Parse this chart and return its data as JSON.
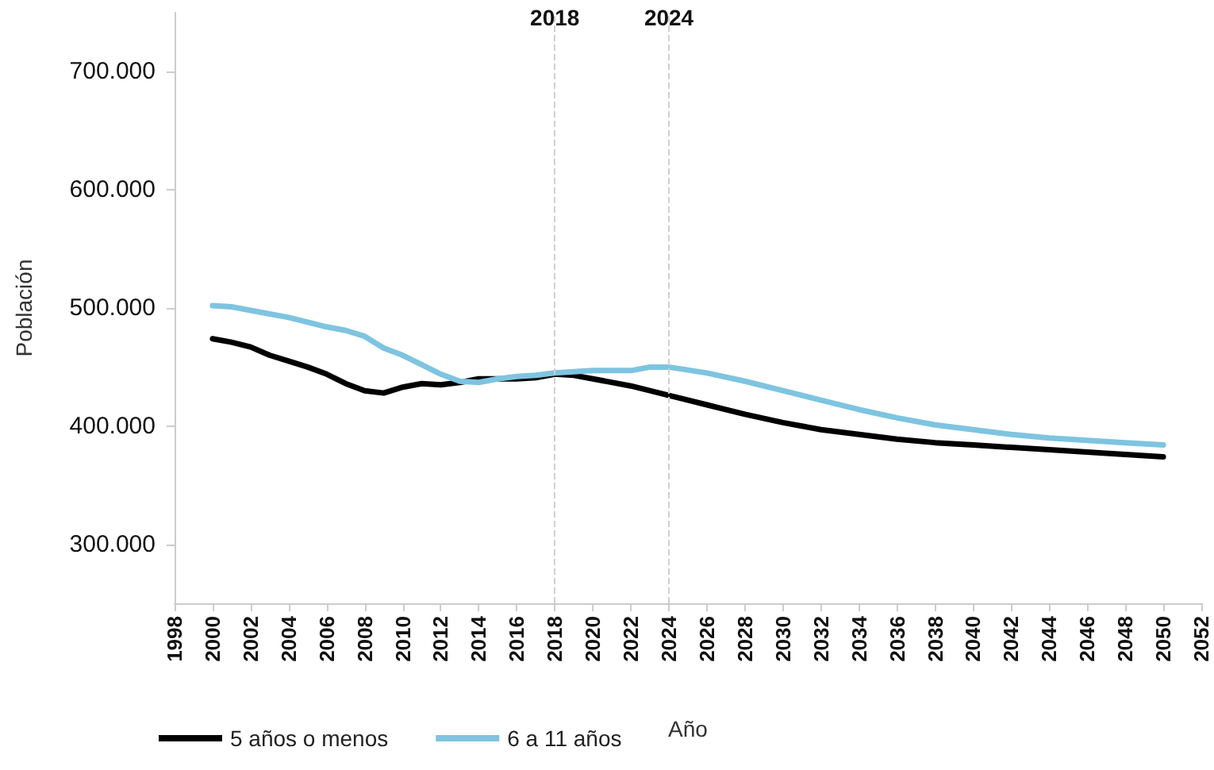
{
  "chart_data": {
    "type": "line",
    "xlabel": "Año",
    "ylabel": "Población",
    "xlim": [
      1998,
      2052
    ],
    "xticks": [
      1998,
      2000,
      2002,
      2004,
      2006,
      2008,
      2010,
      2012,
      2014,
      2016,
      2018,
      2020,
      2022,
      2024,
      2026,
      2028,
      2030,
      2032,
      2034,
      2036,
      2038,
      2040,
      2042,
      2044,
      2046,
      2048,
      2050,
      2052
    ],
    "ylim": [
      250000,
      750000
    ],
    "yticks": [
      {
        "value": 300000,
        "label": "300.000"
      },
      {
        "value": 400000,
        "label": "400.000"
      },
      {
        "value": 500000,
        "label": "500.000"
      },
      {
        "value": 600000,
        "label": "600.000"
      },
      {
        "value": 700000,
        "label": "700.000"
      }
    ],
    "grid": false,
    "legend": "bottom left",
    "marker": "none",
    "line_style": "solid",
    "x": [
      2000,
      2001,
      2002,
      2003,
      2004,
      2005,
      2006,
      2007,
      2008,
      2009,
      2010,
      2011,
      2012,
      2013,
      2014,
      2015,
      2016,
      2017,
      2018,
      2019,
      2020,
      2022,
      2023,
      2024,
      2026,
      2028,
      2030,
      2032,
      2034,
      2036,
      2038,
      2040,
      2042,
      2044,
      2046,
      2048,
      2050
    ],
    "series": [
      {
        "name": "5 años o menos",
        "color": "#000000",
        "values": [
          474000,
          471000,
          467000,
          460000,
          455000,
          450000,
          444000,
          436000,
          430000,
          428000,
          433000,
          436000,
          435000,
          437000,
          440000,
          440000,
          440000,
          441000,
          444000,
          443000,
          440000,
          434000,
          430000,
          426000,
          418000,
          410000,
          403000,
          397000,
          393000,
          389000,
          386000,
          384000,
          382000,
          380000,
          378000,
          376000,
          374000
        ]
      },
      {
        "name": "6 a 11 años",
        "color": "#7ec4e0",
        "values": [
          502000,
          501000,
          498000,
          495000,
          492000,
          488000,
          484000,
          481000,
          476000,
          466000,
          460000,
          452000,
          444000,
          438000,
          437000,
          440000,
          442000,
          443000,
          445000,
          446000,
          447000,
          447000,
          450000,
          450000,
          445000,
          438000,
          430000,
          422000,
          414000,
          407000,
          401000,
          397000,
          393000,
          390000,
          388000,
          386000,
          384000
        ]
      }
    ],
    "ref_lines": [
      {
        "axis": "x",
        "value": 2018,
        "label": "2018",
        "color": "#d0d0d0",
        "line_style": "dashed"
      },
      {
        "axis": "x",
        "value": 2024,
        "label": "2024",
        "color": "#d0d0d0",
        "line_style": "dashed"
      }
    ]
  }
}
